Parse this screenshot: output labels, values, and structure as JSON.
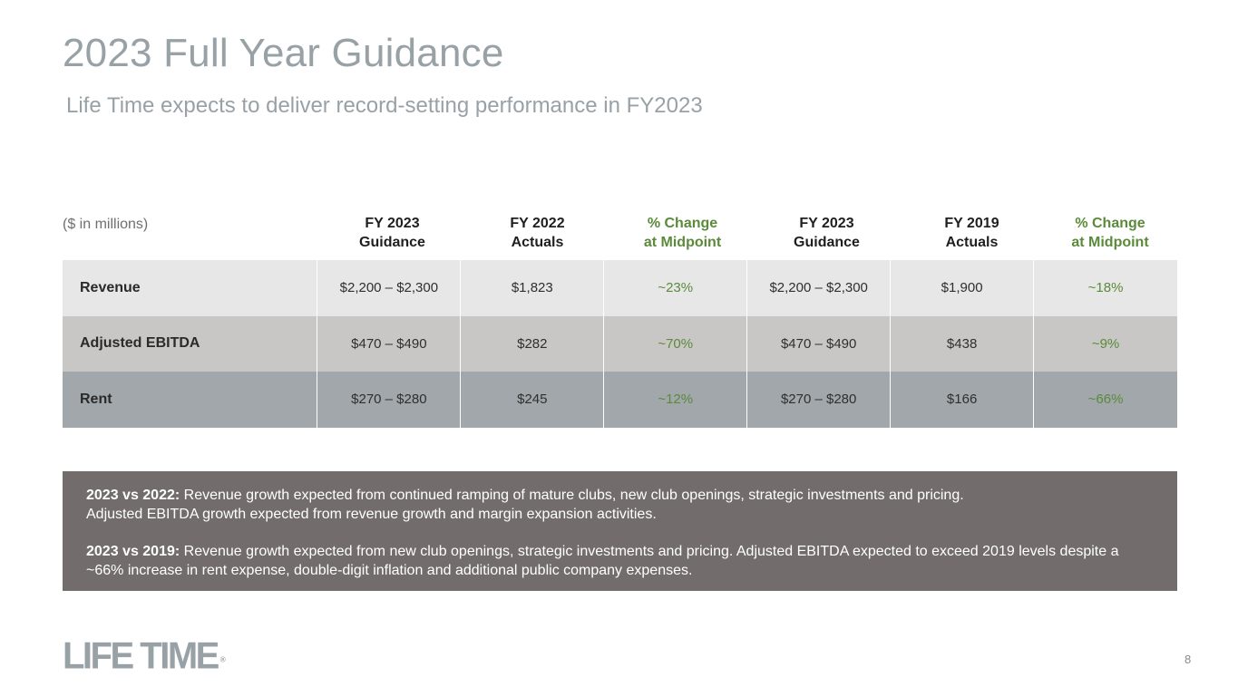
{
  "slide": {
    "title": "2023 Full Year Guidance",
    "subtitle": "Life Time expects to deliver record-setting performance in FY2023",
    "page_number": "8"
  },
  "table": {
    "units_label": "($ in millions)",
    "columns": [
      {
        "line1": "FY 2023",
        "line2": "Guidance"
      },
      {
        "line1": "FY 2022",
        "line2": "Actuals"
      },
      {
        "line1": "% Change",
        "line2": "at Midpoint"
      },
      {
        "line1": "FY 2023",
        "line2": "Guidance"
      },
      {
        "line1": "FY 2019",
        "line2": "Actuals"
      },
      {
        "line1": "% Change",
        "line2": "at Midpoint"
      }
    ],
    "rows": [
      {
        "label": "Revenue",
        "values": [
          "$2,200 – $2,300",
          "$1,823",
          "~23%",
          "$2,200 – $2,300",
          "$1,900",
          "~18%"
        ]
      },
      {
        "label": "Adjusted EBITDA",
        "values": [
          "$470 – $490",
          "$282",
          "~70%",
          "$470 – $490",
          "$438",
          "~9%"
        ]
      },
      {
        "label": "Rent",
        "values": [
          "$270 – $280",
          "$245",
          "~12%",
          "$270 – $280",
          "$166",
          "~66%"
        ]
      }
    ]
  },
  "notes": {
    "p1_lead": "2023 vs 2022:",
    "p1_text": " Revenue growth expected from continued ramping of mature clubs, new club openings, strategic investments and pricing.",
    "p1_text2": "Adjusted EBITDA growth expected from revenue growth and margin expansion activities.",
    "p2_lead": "2023 vs 2019:",
    "p2_text": " Revenue growth expected from new club openings, strategic investments and pricing. Adjusted EBITDA expected to exceed 2019 levels despite a ~66% increase in rent expense, double-digit inflation and additional public company expenses."
  },
  "brand": {
    "logo_text": "LIFE TIME",
    "logo_mark": "®"
  },
  "colors": {
    "title_gray": "#98a1a6",
    "accent_green": "#5a8a3a",
    "row1": "#e7e7e7",
    "row2": "#c9c6c6",
    "row3": "#a1a7aa",
    "notes_bg": "#726d6c"
  }
}
